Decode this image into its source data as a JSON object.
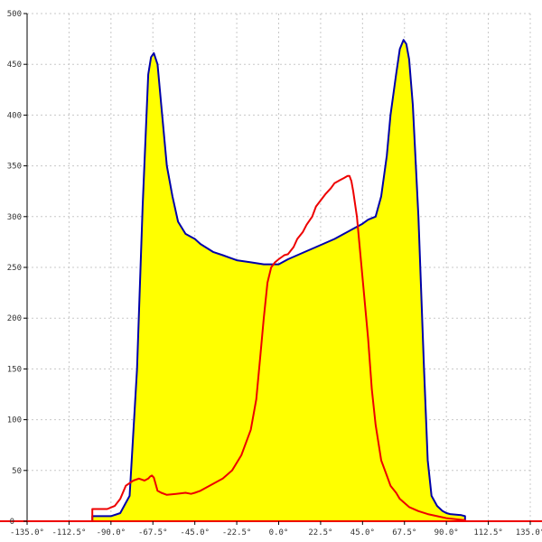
{
  "chart_data": {
    "type": "area",
    "title": "",
    "xlabel": "",
    "ylabel": "",
    "xlim": [
      -135,
      135
    ],
    "ylim": [
      0,
      500
    ],
    "grid": true,
    "x_ticks": [
      -135,
      -112.5,
      -90,
      -67.5,
      -45,
      -22.5,
      0,
      22.5,
      45,
      67.5,
      90,
      112.5,
      135
    ],
    "x_tick_labels": [
      "-135.0°",
      "-112.5°",
      "-90.0°",
      "-67.5°",
      "-45.0°",
      "-22.5°",
      "0.0°",
      "22.5°",
      "45.0°",
      "67.5°",
      "90.0°",
      "112.5°",
      "135.0°"
    ],
    "y_ticks": [
      0,
      50,
      100,
      150,
      200,
      250,
      300,
      350,
      400,
      450,
      500
    ],
    "y_tick_labels": [
      "0",
      "50",
      "100",
      "150",
      "200",
      "250",
      "300",
      "350",
      "400",
      "450",
      "500"
    ],
    "series": [
      {
        "color": "#0000aa",
        "fill": "#ffff00",
        "x": [
          -135,
          -100,
          -100,
          -90,
          -85,
          -80,
          -76,
          -73,
          -70,
          -68.5,
          -67,
          -65,
          -63,
          -60,
          -57,
          -54,
          -50,
          -47,
          -45,
          -42,
          -35,
          -30,
          -22.5,
          -15,
          -8,
          -5,
          0,
          5,
          10,
          15,
          20,
          25,
          30,
          35,
          40,
          45,
          48,
          52,
          55,
          58,
          60,
          63,
          65,
          67,
          68.5,
          70,
          72,
          75,
          78,
          80,
          82,
          85,
          88,
          90,
          92,
          98,
          100,
          100,
          135
        ],
        "y": [
          0,
          0,
          5,
          5,
          8,
          25,
          150,
          310,
          440,
          457,
          461,
          450,
          410,
          350,
          320,
          295,
          283,
          280,
          278,
          273,
          265,
          262,
          257,
          255,
          253,
          253,
          253,
          258,
          262,
          266,
          270,
          274,
          278,
          283,
          288,
          293,
          297,
          300,
          320,
          360,
          400,
          440,
          465,
          474,
          470,
          455,
          410,
          300,
          150,
          60,
          25,
          15,
          10,
          8,
          7,
          6,
          5,
          0,
          0
        ]
      },
      {
        "color": "#ee0000",
        "x": [
          -135,
          -100,
          -100,
          -95,
          -92,
          -88,
          -85,
          -82,
          -78,
          -75,
          -72,
          -70,
          -69,
          -68,
          -67,
          -65,
          -63,
          -60,
          -55,
          -50,
          -47,
          -45,
          -42,
          -40,
          -35,
          -30,
          -25,
          -20,
          -15,
          -12,
          -10,
          -8,
          -6,
          -4,
          -2,
          0,
          3,
          5,
          8,
          10,
          13,
          15,
          18,
          20,
          25,
          28,
          30,
          33,
          35,
          37,
          38,
          39,
          40,
          42,
          45,
          48,
          50,
          52,
          55,
          58,
          60,
          63,
          65,
          70,
          75,
          80,
          85,
          90,
          95,
          100,
          100,
          135
        ],
        "y": [
          0,
          0,
          12,
          12,
          12,
          15,
          22,
          35,
          40,
          42,
          40,
          42,
          44,
          45,
          43,
          30,
          28,
          26,
          27,
          28,
          27,
          28,
          30,
          32,
          37,
          42,
          50,
          65,
          90,
          120,
          160,
          200,
          235,
          250,
          255,
          258,
          262,
          263,
          270,
          278,
          285,
          292,
          300,
          310,
          322,
          328,
          333,
          336,
          338,
          340,
          340,
          335,
          325,
          300,
          240,
          180,
          130,
          95,
          60,
          45,
          35,
          28,
          22,
          14,
          10,
          7,
          5,
          3,
          2,
          1,
          0,
          0
        ]
      }
    ]
  }
}
